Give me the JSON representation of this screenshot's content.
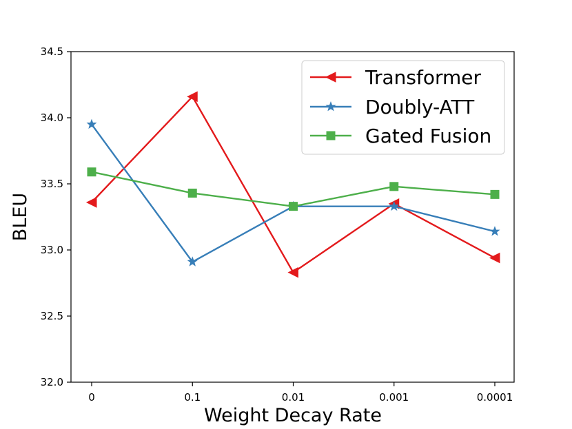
{
  "chart_data": {
    "type": "line",
    "title": "",
    "xlabel": "Weight Decay Rate",
    "ylabel": "BLEU",
    "categories": [
      "0",
      "0.1",
      "0.01",
      "0.001",
      "0.0001"
    ],
    "ylim": [
      32.0,
      34.5
    ],
    "yticks": [
      "32.0",
      "32.5",
      "33.0",
      "33.5",
      "34.0",
      "34.5"
    ],
    "grid": false,
    "legend_position": "top-right",
    "series": [
      {
        "name": "Transformer",
        "color": "#e31a1c",
        "marker": "triangle-left",
        "values": [
          33.36,
          34.16,
          32.83,
          33.35,
          32.94
        ]
      },
      {
        "name": "Doubly-ATT",
        "color": "#377eb8",
        "marker": "star",
        "values": [
          33.95,
          32.91,
          33.33,
          33.33,
          33.14
        ]
      },
      {
        "name": "Gated Fusion",
        "color": "#4daf4a",
        "marker": "square",
        "values": [
          33.59,
          33.43,
          33.33,
          33.48,
          33.42
        ]
      }
    ]
  }
}
